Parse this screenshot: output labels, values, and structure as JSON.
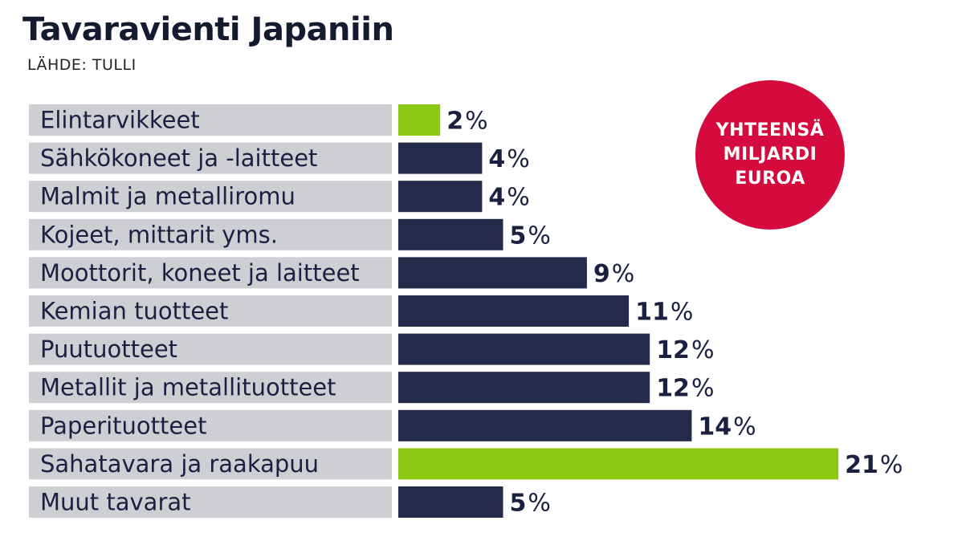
{
  "title": "Tavaravienti Japaniin",
  "source": "LÄHDE: TULLI",
  "badge": {
    "lines": [
      "YHTEENSÄ",
      "MILJARDI",
      "EUROA"
    ]
  },
  "colors": {
    "bar_default": "#232a4a",
    "bar_highlight": "#8dc815",
    "label_bg": "#cdcfd3",
    "badge_bg": "#d40b3c",
    "text": "#1c2040"
  },
  "chart_data": {
    "type": "bar",
    "orientation": "horizontal",
    "unit": "%",
    "categories": [
      "Elintarvikkeet",
      "Sähkökoneet ja -laitteet",
      "Malmit ja metalliromu",
      "Kojeet, mittarit yms.",
      "Moottorit, koneet ja laitteet",
      "Kemian tuotteet",
      "Puutuotteet",
      "Metallit ja metallituotteet",
      "Paperituotteet",
      "Sahatavara ja raakapuu",
      "Muut tavarat"
    ],
    "values": [
      2,
      4,
      4,
      5,
      9,
      11,
      12,
      12,
      14,
      21,
      5
    ],
    "highlighted": [
      true,
      false,
      false,
      false,
      false,
      false,
      false,
      false,
      false,
      true,
      false
    ],
    "xlim": [
      0,
      21
    ],
    "grid": false,
    "legend": "none"
  }
}
